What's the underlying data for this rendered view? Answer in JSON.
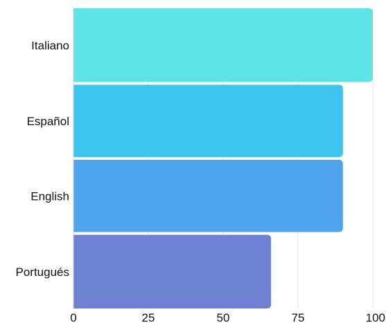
{
  "chart_data": {
    "type": "bar",
    "orientation": "horizontal",
    "categories": [
      "Italiano",
      "Español",
      "English",
      "Portugués"
    ],
    "values": [
      100,
      90,
      90,
      66
    ],
    "colors": [
      "#5ee3e6",
      "#3cc6ef",
      "#4fa5eb",
      "#6f81d3"
    ],
    "xlim": [
      0,
      100
    ],
    "xticks": [
      "0",
      "25",
      "50",
      "75",
      "100"
    ],
    "grid": true
  }
}
